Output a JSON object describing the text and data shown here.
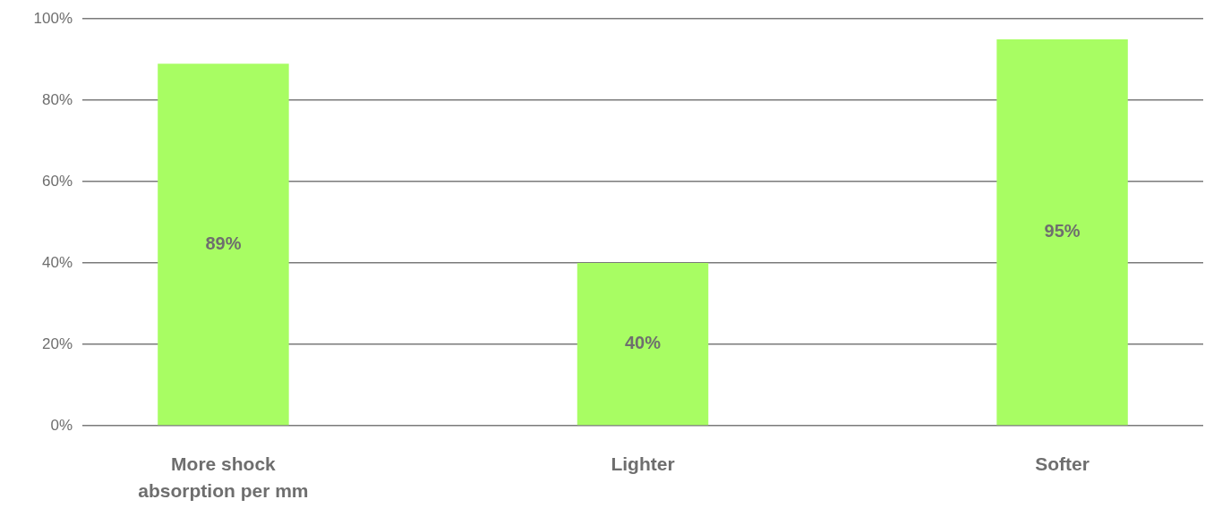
{
  "chart_data": {
    "type": "bar",
    "categories": [
      "More shock absorption per mm",
      "Lighter",
      "Softer"
    ],
    "values": [
      89,
      40,
      95
    ],
    "color": "#a8fd63",
    "value_labels": [
      "89%",
      "40%",
      "95%"
    ],
    "ylim": [
      0,
      100
    ],
    "yticks": [
      {
        "value": 0,
        "label": "0%"
      },
      {
        "value": 20,
        "label": "20%"
      },
      {
        "value": 40,
        "label": "40%"
      },
      {
        "value": 60,
        "label": "60%"
      },
      {
        "value": 80,
        "label": "80%"
      },
      {
        "value": 100,
        "label": "100%"
      }
    ],
    "grid": "y"
  }
}
